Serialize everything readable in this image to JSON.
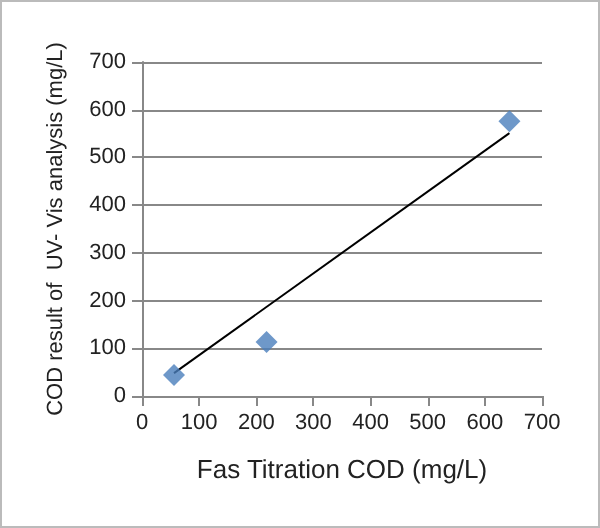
{
  "chart_data": {
    "type": "scatter",
    "xlabel": "Fas Titration COD (mg/L)",
    "ylabel": "COD result of  UV- Vis analysis (mg/L)",
    "xlim": [
      0,
      700
    ],
    "xticks": [
      0,
      100,
      200,
      300,
      400,
      500,
      600,
      700
    ],
    "ylim": [
      0,
      700
    ],
    "yticks": [
      0,
      100,
      200,
      300,
      400,
      500,
      600,
      700
    ],
    "grid": "y",
    "marker": "diamond",
    "series": [
      {
        "color": "#4a7ebb",
        "x": [
          56,
          218,
          643
        ],
        "values": [
          44,
          113,
          576
        ]
      },
      {
        "type": "line",
        "color": "#000000",
        "x": [
          56,
          643
        ],
        "values": [
          48,
          551
        ],
        "marker": "none",
        "line_style": "solid"
      }
    ]
  }
}
